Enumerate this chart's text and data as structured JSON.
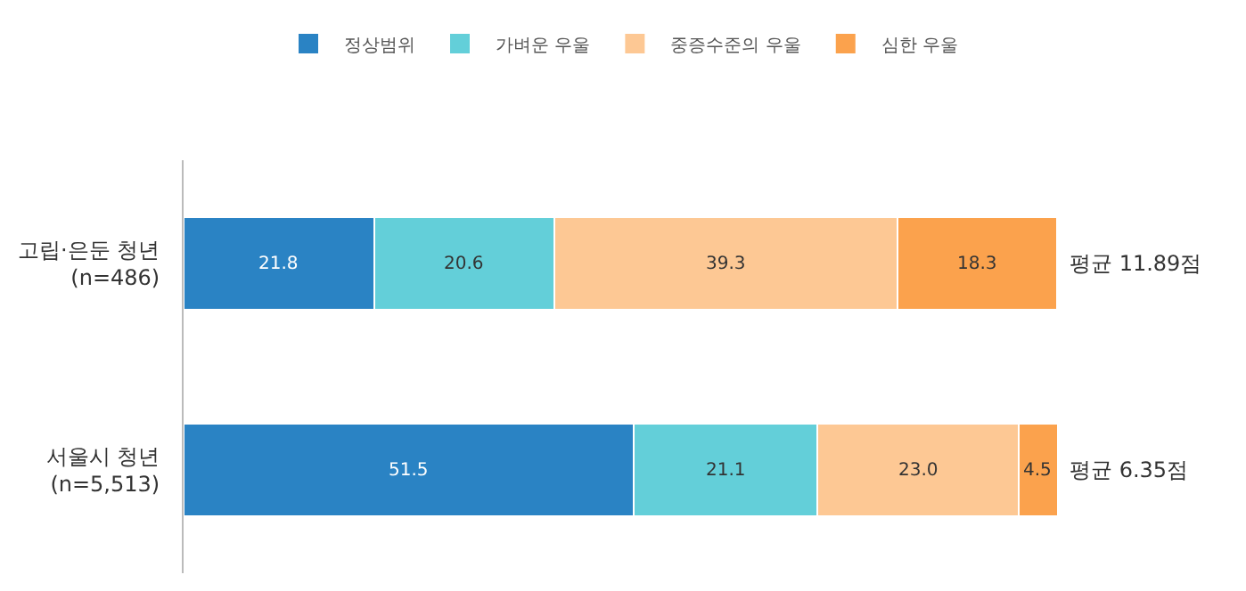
{
  "chart_data": {
    "type": "bar",
    "orientation": "horizontal",
    "stacked": true,
    "legend": "top",
    "tick_labels": "y",
    "xlim": [
      0,
      100
    ],
    "categories": [
      "고립·은둔 청년\n(n=486)",
      "서울시 청년\n(n=5,513)"
    ],
    "series": [
      {
        "name": "정상범위",
        "color": "#2a83c4",
        "values": [
          21.8,
          51.5
        ],
        "value_labels": [
          "21.8",
          "51.5"
        ]
      },
      {
        "name": "가벼운 우울",
        "color": "#63cfd9",
        "values": [
          20.6,
          21.1
        ],
        "value_labels": [
          "20.6",
          "21.1"
        ]
      },
      {
        "name": "중증수준의 우울",
        "color": "#fdc894",
        "values": [
          39.3,
          23.0
        ],
        "value_labels": [
          "39.3",
          "23.0"
        ]
      },
      {
        "name": "심한 우울",
        "color": "#fba24d",
        "values": [
          18.3,
          4.5
        ],
        "value_labels": [
          "18.3",
          "4.5"
        ]
      }
    ],
    "annotations": [
      "평균 11.89점",
      "평균 6.35점"
    ]
  }
}
